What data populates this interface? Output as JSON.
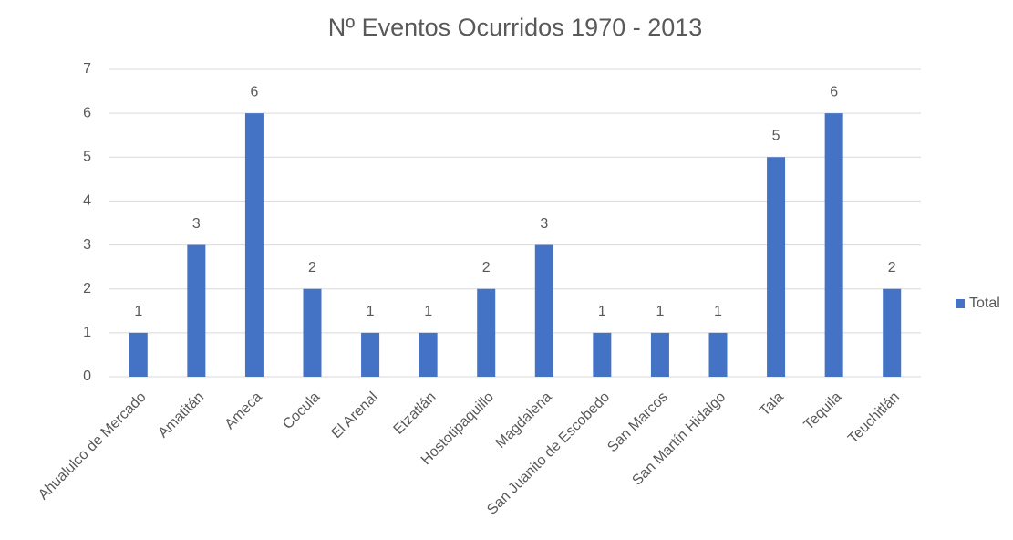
{
  "chart_data": {
    "type": "bar",
    "title": "Nº Eventos Ocurridos 1970 - 2013",
    "categories": [
      "Ahualulco de Mercado",
      "Amatitán",
      "Ameca",
      "Cocula",
      "El Arenal",
      "Etzatlán",
      "Hostotipaquillo",
      "Magdalena",
      "San Juanito de Escobedo",
      "San Marcos",
      "San Martín Hidalgo",
      "Tala",
      "Tequila",
      "Teuchitlán"
    ],
    "series": [
      {
        "name": "Total",
        "color": "#4472c4",
        "values": [
          1,
          3,
          6,
          2,
          1,
          1,
          2,
          3,
          1,
          1,
          1,
          5,
          6,
          2
        ]
      }
    ],
    "ylim": [
      0,
      7
    ],
    "yticks": [
      0,
      1,
      2,
      3,
      4,
      5,
      6,
      7
    ],
    "grid": true,
    "legend": "right",
    "data_labels": true
  }
}
